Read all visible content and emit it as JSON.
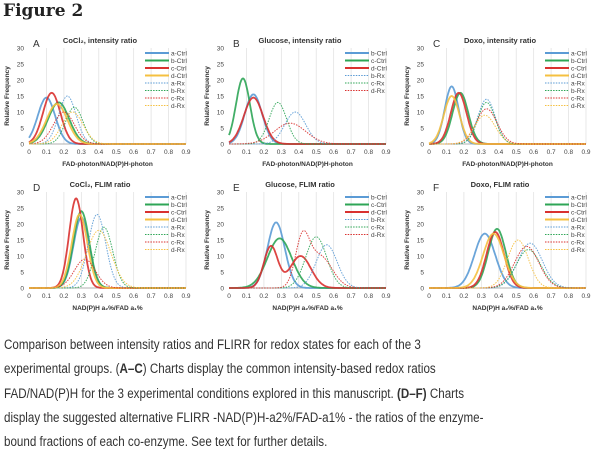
{
  "figure_title": "Figure 2",
  "caption": {
    "lines": [
      [
        {
          "t": "Comparison between intensity ratios and FLIRR for redox states for each of the 3"
        }
      ],
      [
        {
          "t": "experimental groups. ("
        },
        {
          "t": "A–C",
          "b": true
        },
        {
          "t": ") Charts display the common intensity-based redox ratios"
        }
      ],
      [
        {
          "t": "FAD/NAD(P)H for the 3 experimental conditions explored in this manuscript. "
        },
        {
          "t": "(D–F)",
          "b": true
        },
        {
          "t": " Charts"
        }
      ],
      [
        {
          "t": "display the suggested alternative FLIRR -NAD(P)H-a2%/FAD-a1% - the ratios of the enzyme-"
        }
      ],
      [
        {
          "t": "bound fractions of each co-enzyme. See text for further details."
        }
      ]
    ]
  },
  "colors": {
    "a": "#5b9bd5",
    "b": "#2ea556",
    "c": "#d9312f",
    "d": "#f5c040"
  },
  "chart_data": [
    {
      "type": "line",
      "panel": "A",
      "title": "CoCl₂, intensity ratio",
      "xlabel": "FAD-photon/NAD(P)H-photon",
      "ylabel": "Relative Frequency",
      "xlim": [
        0,
        0.9
      ],
      "ylim": [
        0,
        30
      ],
      "xticks": [
        "0",
        "0.1",
        "0.2",
        "0.3",
        "0.4",
        "0.5",
        "0.6",
        "0.7",
        "0.8",
        "0.9"
      ],
      "yticks": [
        "0",
        "5",
        "10",
        "15",
        "20",
        "25",
        "30"
      ],
      "legend": "right",
      "series": [
        {
          "name": "a-Ctrl",
          "color": "a",
          "dashed": false,
          "peaks": [
            [
              0.1,
              14.5,
              0.05
            ]
          ]
        },
        {
          "name": "b-Ctrl",
          "color": "b",
          "dashed": false,
          "peaks": [
            [
              0.17,
              13,
              0.06
            ]
          ]
        },
        {
          "name": "c-Ctrl",
          "color": "c",
          "dashed": false,
          "peaks": [
            [
              0.13,
              16,
              0.05
            ]
          ]
        },
        {
          "name": "d-Ctrl",
          "color": "d",
          "dashed": false,
          "peaks": [
            [
              0.16,
              12.5,
              0.06
            ]
          ]
        },
        {
          "name": "a-Rx",
          "color": "a",
          "dashed": true,
          "peaks": [
            [
              0.22,
              15,
              0.05
            ]
          ]
        },
        {
          "name": "b-Rx",
          "color": "b",
          "dashed": true,
          "peaks": [
            [
              0.26,
              11.5,
              0.05
            ]
          ]
        },
        {
          "name": "c-Rx",
          "color": "c",
          "dashed": true,
          "peaks": [
            [
              0.2,
              10,
              0.06
            ]
          ]
        },
        {
          "name": "d-Rx",
          "color": "d",
          "dashed": true,
          "peaks": [
            [
              0.25,
              10,
              0.06
            ]
          ]
        }
      ]
    },
    {
      "type": "line",
      "panel": "B",
      "title": "Glucose, intensity ratio",
      "xlabel": "FAD-photon/NAD(P)H-photon",
      "ylabel": "Relative Frequency",
      "xlim": [
        0,
        0.9
      ],
      "ylim": [
        0,
        30
      ],
      "xticks": [
        "0",
        "0.1",
        "0.2",
        "0.3",
        "0.4",
        "0.5",
        "0.6",
        "0.7",
        "0.8",
        "0.9"
      ],
      "yticks": [
        "0",
        "5",
        "10",
        "15",
        "20",
        "25",
        "30"
      ],
      "legend": "right",
      "series": [
        {
          "name": "b-Ctrl",
          "color": "a",
          "dashed": false,
          "peaks": [
            [
              0.14,
              15.5,
              0.05
            ]
          ]
        },
        {
          "name": "c-Ctrl",
          "color": "b",
          "dashed": false,
          "peaks": [
            [
              0.08,
              20.5,
              0.04
            ]
          ]
        },
        {
          "name": "d-Ctrl",
          "color": "c",
          "dashed": false,
          "peaks": [
            [
              0.14,
              14.5,
              0.055
            ]
          ]
        },
        {
          "name": "b-Rx",
          "color": "a",
          "dashed": true,
          "peaks": [
            [
              0.38,
              10,
              0.06
            ]
          ]
        },
        {
          "name": "c-Rx",
          "color": "b",
          "dashed": true,
          "peaks": [
            [
              0.28,
              13,
              0.05
            ]
          ]
        },
        {
          "name": "d-Rx",
          "color": "c",
          "dashed": true,
          "peaks": [
            [
              0.35,
              6.5,
              0.09
            ]
          ]
        }
      ]
    },
    {
      "type": "line",
      "panel": "C",
      "title": "Doxo, intensity ratio",
      "xlabel": "FAD-photon/NAD(P)H-photon",
      "ylabel": "Relative Frequency",
      "xlim": [
        0,
        0.9
      ],
      "ylim": [
        0,
        30
      ],
      "xticks": [
        "0",
        "0.1",
        "0.2",
        "0.3",
        "0.4",
        "0.5",
        "0.6",
        "0.7",
        "0.8",
        "0.9"
      ],
      "yticks": [
        "0",
        "5",
        "10",
        "15",
        "20",
        "25",
        "30"
      ],
      "legend": "right",
      "series": [
        {
          "name": "a-Ctrl",
          "color": "a",
          "dashed": false,
          "peaks": [
            [
              0.13,
              18,
              0.04
            ]
          ]
        },
        {
          "name": "b-Ctrl",
          "color": "b",
          "dashed": false,
          "peaks": [
            [
              0.18,
              16,
              0.045
            ]
          ]
        },
        {
          "name": "c-Ctrl",
          "color": "c",
          "dashed": false,
          "peaks": [
            [
              0.17,
              16,
              0.045
            ]
          ]
        },
        {
          "name": "d-Ctrl",
          "color": "d",
          "dashed": false,
          "peaks": [
            [
              0.13,
              15,
              0.045
            ]
          ]
        },
        {
          "name": "a-Rx",
          "color": "a",
          "dashed": true,
          "peaks": [
            [
              0.33,
              14,
              0.05
            ]
          ]
        },
        {
          "name": "b-Rx",
          "color": "b",
          "dashed": true,
          "peaks": [
            [
              0.33,
              13,
              0.05
            ]
          ]
        },
        {
          "name": "c-Rx",
          "color": "c",
          "dashed": true,
          "peaks": [
            [
              0.33,
              11,
              0.06
            ]
          ]
        },
        {
          "name": "d-Rx",
          "color": "d",
          "dashed": true,
          "peaks": [
            [
              0.32,
              9,
              0.06
            ]
          ]
        }
      ]
    },
    {
      "type": "line",
      "panel": "D",
      "title": "CoCl₂, FLIM ratio",
      "xlabel": "NAD(P)H a₂%/FAD a₁%",
      "ylabel": "Relative Frequency",
      "xlim": [
        0,
        0.9
      ],
      "ylim": [
        0,
        30
      ],
      "xticks": [
        "0",
        "0.1",
        "0.2",
        "0.3",
        "0.4",
        "0.5",
        "0.6",
        "0.7",
        "0.8",
        "0.9"
      ],
      "yticks": [
        "0",
        "5",
        "10",
        "15",
        "20",
        "25",
        "30"
      ],
      "legend": "right",
      "series": [
        {
          "name": "a-Ctrl",
          "color": "a",
          "dashed": false,
          "peaks": [
            [
              0.3,
              22,
              0.045
            ]
          ]
        },
        {
          "name": "b-Ctrl",
          "color": "b",
          "dashed": false,
          "peaks": [
            [
              0.3,
              24,
              0.045
            ]
          ]
        },
        {
          "name": "c-Ctrl",
          "color": "c",
          "dashed": false,
          "peaks": [
            [
              0.27,
              28,
              0.04
            ]
          ]
        },
        {
          "name": "d-Ctrl",
          "color": "d",
          "dashed": false,
          "peaks": [
            [
              0.29,
              23,
              0.045
            ]
          ]
        },
        {
          "name": "a-Rx",
          "color": "a",
          "dashed": true,
          "peaks": [
            [
              0.39,
              23,
              0.05
            ]
          ]
        },
        {
          "name": "b-Rx",
          "color": "b",
          "dashed": true,
          "peaks": [
            [
              0.43,
              19,
              0.05
            ]
          ]
        },
        {
          "name": "c-Rx",
          "color": "c",
          "dashed": true,
          "peaks": [
            [
              0.32,
              9,
              0.06
            ]
          ]
        },
        {
          "name": "d-Rx",
          "color": "d",
          "dashed": true,
          "peaks": [
            [
              0.4,
              18,
              0.07
            ]
          ]
        }
      ]
    },
    {
      "type": "line",
      "panel": "E",
      "title": "Glucose, FLIM ratio",
      "xlabel": "NAD(P)H a₂%/FAD a₁%",
      "ylabel": "Relative Frequency",
      "xlim": [
        0,
        0.9
      ],
      "ylim": [
        0,
        30
      ],
      "xticks": [
        "0",
        "0.1",
        "0.2",
        "0.3",
        "0.4",
        "0.5",
        "0.6",
        "0.7",
        "0.8",
        "0.9"
      ],
      "yticks": [
        "0",
        "5",
        "10",
        "15",
        "20",
        "25",
        "30"
      ],
      "legend": "right",
      "series": [
        {
          "name": "b-Ctrl",
          "color": "a",
          "dashed": false,
          "peaks": [
            [
              0.27,
              20.5,
              0.05
            ]
          ]
        },
        {
          "name": "c-Ctrl",
          "color": "b",
          "dashed": false,
          "peaks": [
            [
              0.29,
              15.5,
              0.07
            ]
          ]
        },
        {
          "name": "d-Ctrl",
          "color": "c",
          "dashed": false,
          "peaks": [
            [
              0.24,
              13,
              0.04
            ],
            [
              0.41,
              10,
              0.06
            ]
          ]
        },
        {
          "name": "b-Rx",
          "color": "a",
          "dashed": true,
          "peaks": [
            [
              0.56,
              13.5,
              0.06
            ]
          ]
        },
        {
          "name": "c-Rx",
          "color": "b",
          "dashed": true,
          "peaks": [
            [
              0.5,
              16,
              0.06
            ]
          ]
        },
        {
          "name": "d-Rx",
          "color": "c",
          "dashed": true,
          "peaks": [
            [
              0.42,
              14,
              0.04
            ],
            [
              0.52,
              10,
              0.07
            ]
          ]
        }
      ]
    },
    {
      "type": "line",
      "panel": "F",
      "title": "Doxo, FLIM ratio",
      "xlabel": "NAD(P)H a₂%/FAD a₁%",
      "ylabel": "Relative Frequency",
      "xlim": [
        0,
        0.9
      ],
      "ylim": [
        0,
        30
      ],
      "xticks": [
        "0",
        "0.1",
        "0.2",
        "0.3",
        "0.4",
        "0.5",
        "0.6",
        "0.7",
        "0.8",
        "0.9"
      ],
      "yticks": [
        "0",
        "5",
        "10",
        "15",
        "20",
        "25",
        "30"
      ],
      "legend": "right",
      "series": [
        {
          "name": "a-Ctrl",
          "color": "a",
          "dashed": false,
          "peaks": [
            [
              0.32,
              17,
              0.06
            ]
          ]
        },
        {
          "name": "b-Ctrl",
          "color": "b",
          "dashed": false,
          "peaks": [
            [
              0.39,
              18.5,
              0.05
            ]
          ]
        },
        {
          "name": "c-Ctrl",
          "color": "c",
          "dashed": false,
          "peaks": [
            [
              0.38,
              17.5,
              0.05
            ]
          ]
        },
        {
          "name": "d-Ctrl",
          "color": "d",
          "dashed": false,
          "peaks": [
            [
              0.37,
              17,
              0.06
            ]
          ]
        },
        {
          "name": "a-Rx",
          "color": "a",
          "dashed": true,
          "peaks": [
            [
              0.58,
              14,
              0.07
            ]
          ]
        },
        {
          "name": "b-Rx",
          "color": "b",
          "dashed": true,
          "peaks": [
            [
              0.57,
              12,
              0.07
            ]
          ]
        },
        {
          "name": "c-Rx",
          "color": "c",
          "dashed": true,
          "peaks": [
            [
              0.56,
              13,
              0.07
            ]
          ]
        },
        {
          "name": "d-Rx",
          "color": "d",
          "dashed": true,
          "peaks": [
            [
              0.51,
              15,
              0.06
            ]
          ]
        }
      ]
    }
  ]
}
